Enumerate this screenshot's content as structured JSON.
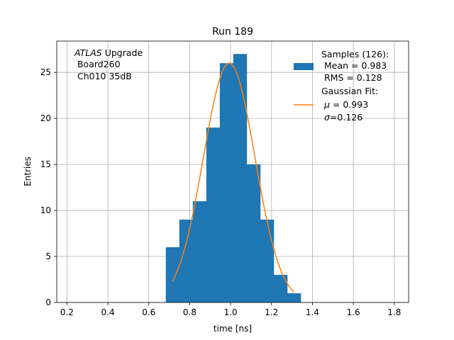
{
  "chart_data": {
    "type": "bar",
    "title": "Run 189",
    "xlabel": "time [ns]",
    "ylabel": "Entries",
    "xlim": [
      0.15,
      1.87
    ],
    "ylim": [
      0,
      28.4
    ],
    "xticks": [
      "0.2",
      "0.4",
      "0.6",
      "0.8",
      "1.0",
      "1.2",
      "1.4",
      "1.6",
      "1.8"
    ],
    "yticks": [
      "0",
      "5",
      "10",
      "15",
      "20",
      "25"
    ],
    "grid": true,
    "bar_color": "#1f77b4",
    "fit_color": "#ff7f0e",
    "histogram": {
      "bin_edges": [
        0.683,
        0.749,
        0.815,
        0.881,
        0.947,
        1.013,
        1.079,
        1.145,
        1.211,
        1.277,
        1.343
      ],
      "counts": [
        6,
        9,
        11,
        19,
        26,
        27,
        15,
        9,
        3,
        1
      ]
    },
    "gaussian_fit": {
      "mu": 0.993,
      "sigma": 0.126,
      "amplitude": 26,
      "x_range": [
        0.716,
        1.31
      ]
    },
    "annotation": {
      "italic": "ATLAS",
      "rest": " Upgrade",
      "line2": " Board260",
      "line3": " Ch010 35dB"
    },
    "legend": {
      "placement": "top-right",
      "hist_line1": "Samples (126):",
      "hist_line2": " Mean = 0.983",
      "hist_line3": " RMS = 0.128",
      "fit_line1": "Gaussian Fit:",
      "fit_line2_sym": "μ",
      "fit_line2_rest": " = 0.993",
      "fit_line3_sym": "σ",
      "fit_line3_rest": "=0.126"
    }
  }
}
